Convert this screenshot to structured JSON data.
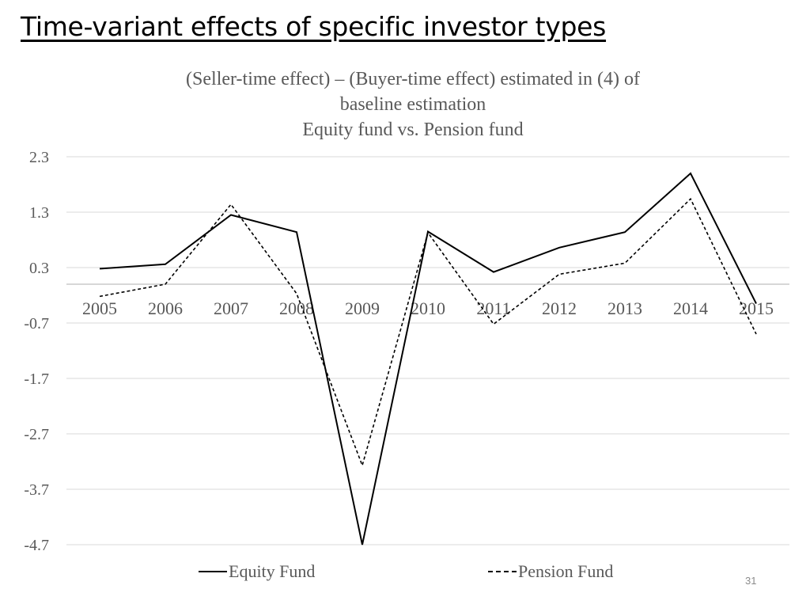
{
  "slide": {
    "title": "Time-variant effects of specific investor types",
    "page_number": "31"
  },
  "chart_data": {
    "type": "line",
    "title_lines": [
      "(Seller-time effect) – (Buyer-time effect) estimated in (4) of",
      "baseline estimation",
      "Equity fund vs. Pension fund"
    ],
    "xlabel": "",
    "ylabel": "",
    "categories": [
      "2005",
      "2006",
      "2007",
      "2008",
      "2009",
      "2010",
      "2011",
      "2012",
      "2013",
      "2014",
      "2015"
    ],
    "y_ticks": [
      "2.3",
      "1.3",
      "0.3",
      "-0.7",
      "-1.7",
      "-2.7",
      "-3.7",
      "-4.7"
    ],
    "ylim": [
      -4.7,
      2.3
    ],
    "x_axis_at": 0,
    "grid": true,
    "legend_position": "bottom",
    "series": [
      {
        "name": "Equity Fund",
        "style": "solid",
        "color": "#000000",
        "values": [
          0.28,
          0.36,
          1.25,
          0.94,
          -4.7,
          0.95,
          0.22,
          0.66,
          0.94,
          2.0,
          -0.35
        ]
      },
      {
        "name": "Pension Fund",
        "style": "dashed",
        "color": "#000000",
        "values": [
          -0.22,
          0.0,
          1.44,
          -0.17,
          -3.27,
          0.93,
          -0.72,
          0.18,
          0.38,
          1.54,
          -0.9
        ]
      }
    ]
  }
}
